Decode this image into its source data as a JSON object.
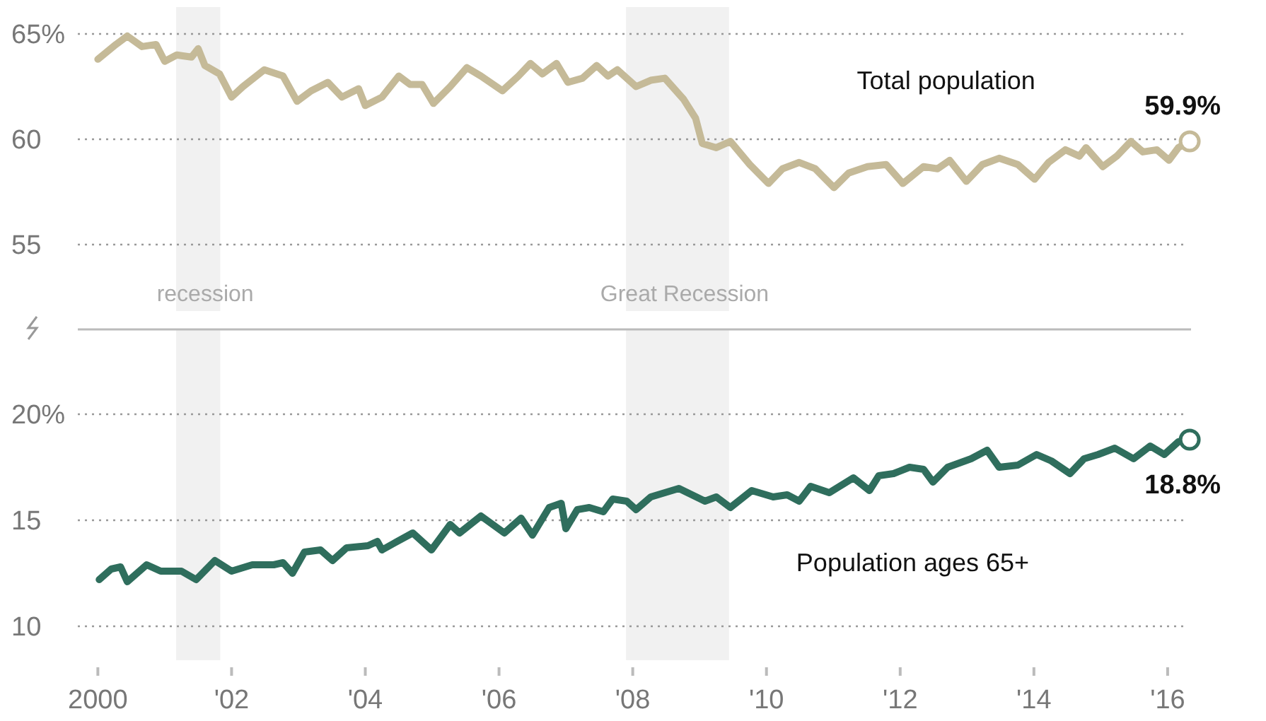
{
  "chart_data": [
    {
      "type": "line",
      "xlim": [
        1999.7,
        2016.35
      ],
      "ylim": [
        55,
        65
      ],
      "yticks": [
        {
          "value": 65,
          "label": "65%"
        },
        60,
        55
      ],
      "grid": "y",
      "tick_labels": "y",
      "legend": false,
      "marker": "none",
      "line_style": "solid",
      "bands": [
        {
          "axis": "x",
          "from": 2001.17,
          "to": 2001.83,
          "label": "recession",
          "color": "#f1f1f1"
        },
        {
          "axis": "x",
          "from": 2007.9,
          "to": 2009.44,
          "label": "Great Recession",
          "color": "#f1f1f1"
        }
      ],
      "x": [
        2000.0,
        2000.27,
        2000.44,
        2000.66,
        2000.87,
        2001.0,
        2001.18,
        2001.4,
        2001.5,
        2001.6,
        2001.82,
        2002.0,
        2002.17,
        2002.49,
        2002.77,
        2002.98,
        2003.19,
        2003.44,
        2003.65,
        2003.9,
        2004.0,
        2004.25,
        2004.5,
        2004.67,
        2004.85,
        2005.02,
        2005.27,
        2005.52,
        2005.73,
        2006.05,
        2006.29,
        2006.47,
        2006.65,
        2006.86,
        2007.03,
        2007.25,
        2007.46,
        2007.63,
        2007.77,
        2008.05,
        2008.27,
        2008.48,
        2008.76,
        2008.94,
        2009.04,
        2009.25,
        2009.46,
        2009.75,
        2010.03,
        2010.24,
        2010.49,
        2010.73,
        2011.01,
        2011.23,
        2011.51,
        2011.79,
        2012.04,
        2012.35,
        2012.56,
        2012.74,
        2012.99,
        2013.23,
        2013.48,
        2013.76,
        2014.01,
        2014.22,
        2014.47,
        2014.68,
        2014.78,
        2015.03,
        2015.24,
        2015.45,
        2015.63,
        2015.84,
        2016.02,
        2016.16,
        2016.33
      ],
      "series": [
        {
          "name": "Total population",
          "color": "#c5ba98",
          "values": [
            63.8,
            64.5,
            64.9,
            64.4,
            64.5,
            63.7,
            64.0,
            63.9,
            64.3,
            63.5,
            63.1,
            62.0,
            62.5,
            63.3,
            63.0,
            61.8,
            62.3,
            62.7,
            62.0,
            62.4,
            61.6,
            62.0,
            63.0,
            62.6,
            62.6,
            61.7,
            62.5,
            63.4,
            63.0,
            62.3,
            63.0,
            63.6,
            63.1,
            63.6,
            62.7,
            62.9,
            63.5,
            63.0,
            63.3,
            62.5,
            62.8,
            62.9,
            61.9,
            61.0,
            59.8,
            59.6,
            59.9,
            58.8,
            57.9,
            58.6,
            58.9,
            58.6,
            57.7,
            58.4,
            58.7,
            58.8,
            57.9,
            58.7,
            58.6,
            59.0,
            58.0,
            58.8,
            59.1,
            58.8,
            58.1,
            58.9,
            59.5,
            59.2,
            59.6,
            58.7,
            59.2,
            59.9,
            59.4,
            59.5,
            59.0,
            59.6,
            59.9
          ]
        }
      ],
      "annotations": [
        {
          "text": "59.9%",
          "x": 2016.33,
          "y": 59.9
        }
      ]
    },
    {
      "type": "line",
      "xlim": [
        1999.7,
        2016.35
      ],
      "ylim": [
        10,
        20
      ],
      "yticks": [
        {
          "value": 20,
          "label": "20%"
        },
        15,
        10
      ],
      "xticks": [
        2000,
        {
          "value": 2002,
          "label": "'02"
        },
        {
          "value": 2004,
          "label": "'04"
        },
        {
          "value": 2006,
          "label": "'06"
        },
        {
          "value": 2008,
          "label": "'08"
        },
        {
          "value": 2010,
          "label": "'10"
        },
        {
          "value": 2012,
          "label": "'12"
        },
        {
          "value": 2014,
          "label": "'14"
        },
        {
          "value": 2016,
          "label": "'16"
        }
      ],
      "grid": "y",
      "legend": false,
      "marker": "none",
      "line_style": "solid",
      "bands": [
        {
          "axis": "x",
          "from": 2001.17,
          "to": 2001.83,
          "color": "#f1f1f1"
        },
        {
          "axis": "x",
          "from": 2007.9,
          "to": 2009.44,
          "color": "#f1f1f1"
        }
      ],
      "x": [
        2000.02,
        2000.2,
        2000.34,
        2000.44,
        2000.73,
        2000.94,
        2001.25,
        2001.47,
        2001.75,
        2002.0,
        2002.31,
        2002.63,
        2002.77,
        2002.91,
        2003.09,
        2003.33,
        2003.51,
        2003.72,
        2004.04,
        2004.18,
        2004.25,
        2004.42,
        2004.71,
        2004.99,
        2005.27,
        2005.41,
        2005.73,
        2006.08,
        2006.33,
        2006.5,
        2006.75,
        2006.93,
        2007.0,
        2007.17,
        2007.35,
        2007.56,
        2007.7,
        2007.91,
        2008.05,
        2008.27,
        2008.69,
        2009.08,
        2009.25,
        2009.46,
        2009.78,
        2010.1,
        2010.31,
        2010.49,
        2010.66,
        2010.94,
        2011.3,
        2011.54,
        2011.68,
        2011.9,
        2012.14,
        2012.35,
        2012.49,
        2012.71,
        2013.06,
        2013.3,
        2013.48,
        2013.76,
        2014.04,
        2014.26,
        2014.54,
        2014.75,
        2014.96,
        2015.21,
        2015.49,
        2015.74,
        2015.95,
        2016.16,
        2016.33
      ],
      "series": [
        {
          "name": "Population ages 65+",
          "color": "#2f6e5d",
          "values": [
            12.2,
            12.7,
            12.8,
            12.1,
            12.9,
            12.6,
            12.6,
            12.2,
            13.1,
            12.6,
            12.9,
            12.9,
            13.0,
            12.5,
            13.5,
            13.6,
            13.1,
            13.7,
            13.8,
            14.0,
            13.6,
            13.9,
            14.4,
            13.6,
            14.8,
            14.4,
            15.2,
            14.4,
            15.1,
            14.3,
            15.6,
            15.8,
            14.6,
            15.5,
            15.6,
            15.4,
            16.0,
            15.9,
            15.5,
            16.1,
            16.5,
            15.9,
            16.1,
            15.6,
            16.4,
            16.1,
            16.2,
            15.9,
            16.6,
            16.3,
            17.0,
            16.4,
            17.1,
            17.2,
            17.5,
            17.4,
            16.8,
            17.5,
            17.9,
            18.3,
            17.5,
            17.6,
            18.1,
            17.8,
            17.2,
            17.9,
            18.1,
            18.4,
            17.9,
            18.5,
            18.1,
            18.7,
            18.8
          ]
        }
      ],
      "annotations": [
        {
          "text": "18.8%",
          "x": 2016.33,
          "y": 18.8
        }
      ]
    }
  ]
}
